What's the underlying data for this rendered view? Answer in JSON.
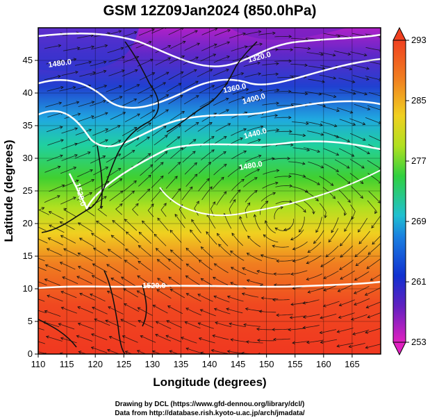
{
  "title": "GSM 12Z09Jan2024 (850.0hPa)",
  "x_axis": {
    "label": "Longitude (degrees)",
    "range": [
      110,
      170
    ],
    "ticks": [
      "110",
      "115",
      "120",
      "125",
      "130",
      "135",
      "140",
      "145",
      "150",
      "155",
      "160",
      "165"
    ]
  },
  "y_axis": {
    "label": "Latitude (degrees)",
    "range": [
      0,
      50
    ],
    "ticks": [
      "0",
      "5",
      "10",
      "15",
      "20",
      "25",
      "30",
      "35",
      "40",
      "45"
    ]
  },
  "colorbar": {
    "range": [
      253,
      293
    ],
    "ticks": [
      "253",
      "261",
      "269",
      "277",
      "285",
      "293"
    ],
    "colors": [
      "#e020c0",
      "#6020c0",
      "#1030d0",
      "#1a80e0",
      "#20c0d0",
      "#30d040",
      "#b0e020",
      "#f0d020",
      "#f08020",
      "#f04020"
    ]
  },
  "contour_labels": [
    "1480.0",
    "1320.0",
    "1360.0",
    "1400.0",
    "1440.0",
    "1480.0",
    "1520.0",
    "1520.0"
  ],
  "credits": {
    "line1": "Drawing by DCL (https://www.gfd-dennou.org/library/dcl/)",
    "line2": "Data from http://database.rish.kyoto-u.ac.jp/arch/jmadata/"
  }
}
